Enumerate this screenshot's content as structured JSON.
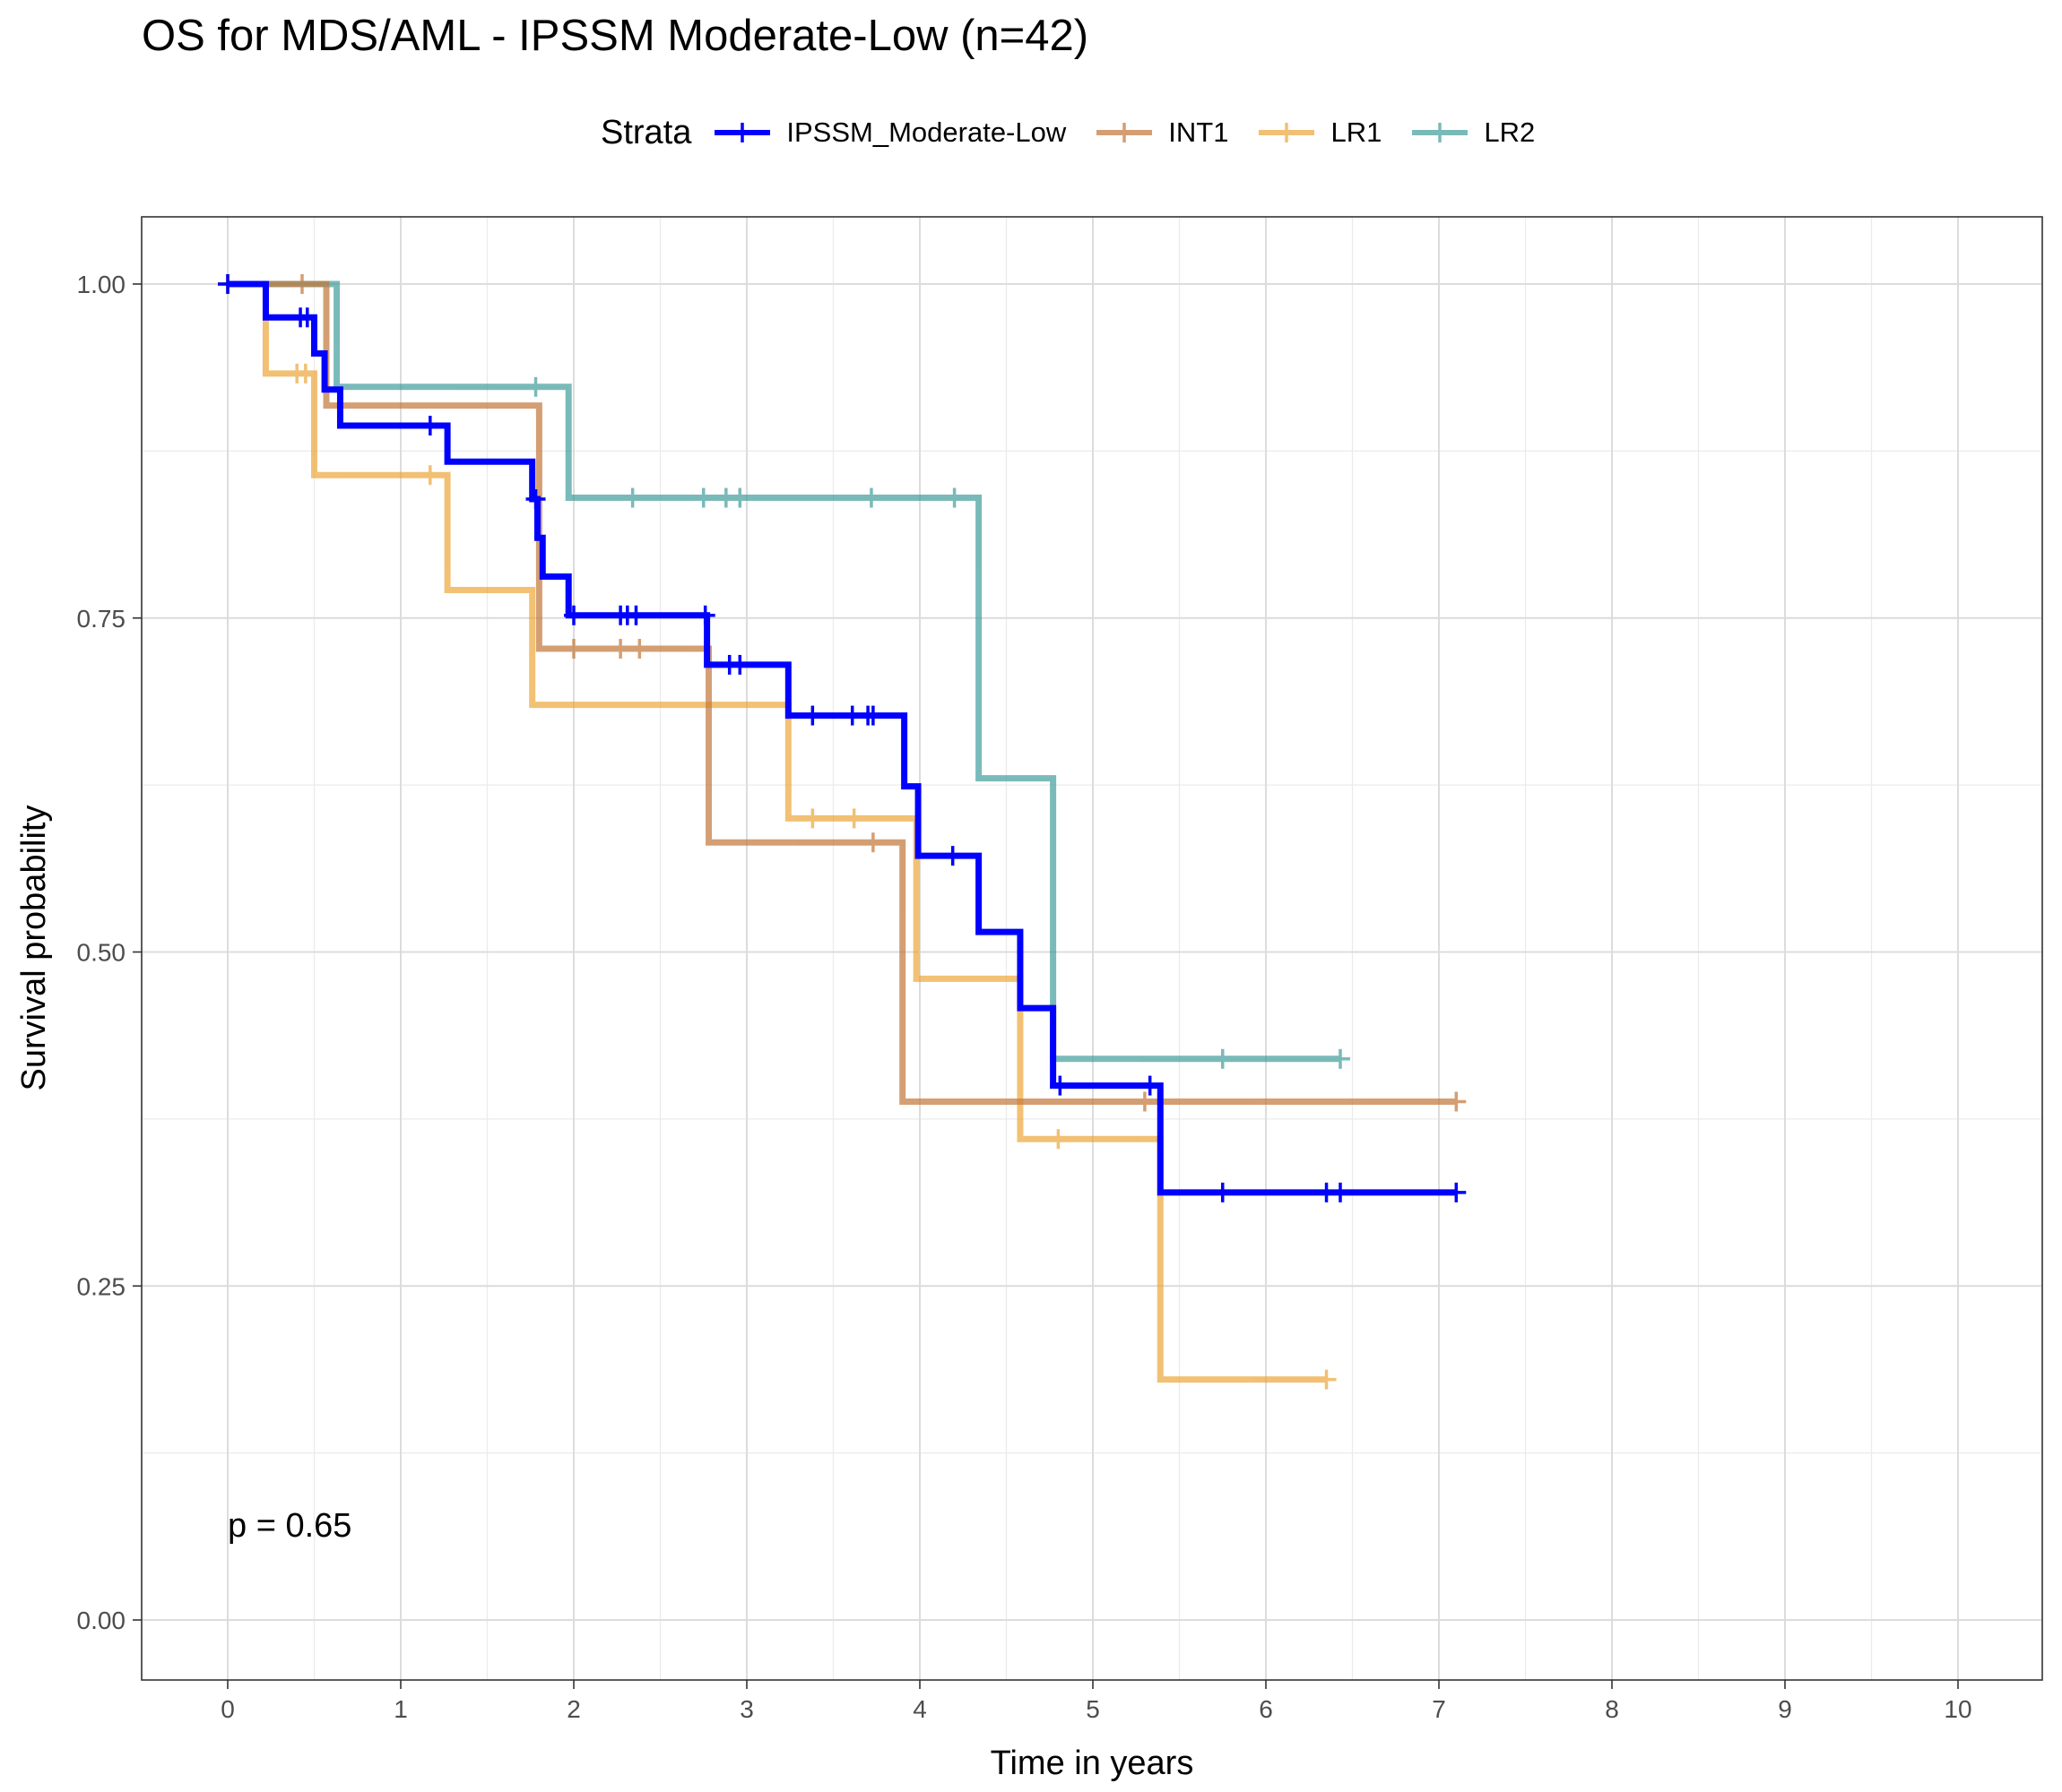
{
  "chart_data": {
    "type": "line",
    "title": "OS for MDS/AML - IPSSM Moderate-Low (n=42)",
    "xlabel": "Time in years",
    "ylabel": "Survival probability",
    "xlim": [
      -0.5,
      10.5
    ],
    "ylim": [
      -0.05,
      1.05
    ],
    "x_ticks": [
      "0",
      "1",
      "2",
      "3",
      "4",
      "5",
      "6",
      "7",
      "8",
      "9",
      "10"
    ],
    "y_ticks": [
      "0.00",
      "0.25",
      "0.50",
      "0.75",
      "1.00"
    ],
    "grid": true,
    "legend_title": "Strata",
    "legend_position": "top",
    "annotation": "p = 0.65",
    "series": [
      {
        "name": "IPSSM_Moderate-Low",
        "color": "#0000ff",
        "opacity": 1.0,
        "steps": [
          [
            0,
            1.0
          ],
          [
            0.22,
            0.975
          ],
          [
            0.5,
            0.948
          ],
          [
            0.56,
            0.921
          ],
          [
            0.65,
            0.894
          ],
          [
            1.27,
            0.867
          ],
          [
            1.76,
            0.839
          ],
          [
            1.79,
            0.81
          ],
          [
            1.82,
            0.781
          ],
          [
            1.97,
            0.752
          ],
          [
            2.77,
            0.715
          ],
          [
            3.24,
            0.677
          ],
          [
            3.91,
            0.624
          ],
          [
            3.99,
            0.572
          ],
          [
            4.34,
            0.515
          ],
          [
            4.58,
            0.458
          ],
          [
            4.77,
            0.4
          ],
          [
            5.39,
            0.32
          ],
          [
            7.1,
            0.32
          ]
        ],
        "censored": [
          [
            0.0,
            1.0
          ],
          [
            0.42,
            0.975
          ],
          [
            0.46,
            0.975
          ],
          [
            1.17,
            0.894
          ],
          [
            1.78,
            0.839
          ],
          [
            2.0,
            0.752
          ],
          [
            2.27,
            0.752
          ],
          [
            2.31,
            0.752
          ],
          [
            2.36,
            0.752
          ],
          [
            2.76,
            0.752
          ],
          [
            2.9,
            0.715
          ],
          [
            2.96,
            0.715
          ],
          [
            3.38,
            0.677
          ],
          [
            3.61,
            0.677
          ],
          [
            3.7,
            0.677
          ],
          [
            3.73,
            0.677
          ],
          [
            4.19,
            0.572
          ],
          [
            4.81,
            0.4
          ],
          [
            5.33,
            0.4
          ],
          [
            5.75,
            0.32
          ],
          [
            6.35,
            0.32
          ],
          [
            6.43,
            0.32
          ],
          [
            7.1,
            0.32
          ]
        ]
      },
      {
        "name": "INT1",
        "color": "#c47a3e",
        "opacity": 0.72,
        "steps": [
          [
            0,
            1.0
          ],
          [
            0.57,
            0.909
          ],
          [
            1.8,
            0.727
          ],
          [
            2.78,
            0.582
          ],
          [
            3.9,
            0.388
          ],
          [
            7.1,
            0.388
          ]
        ],
        "censored": [
          [
            0.0,
            1.0
          ],
          [
            0.43,
            1.0
          ],
          [
            2.0,
            0.727
          ],
          [
            2.27,
            0.727
          ],
          [
            2.38,
            0.727
          ],
          [
            3.73,
            0.582
          ],
          [
            5.3,
            0.388
          ],
          [
            7.1,
            0.388
          ]
        ]
      },
      {
        "name": "LR1",
        "color": "#eb9f2a",
        "opacity": 0.65,
        "steps": [
          [
            0,
            1.0
          ],
          [
            0.22,
            0.933
          ],
          [
            0.5,
            0.857
          ],
          [
            1.27,
            0.771
          ],
          [
            1.76,
            0.685
          ],
          [
            3.24,
            0.6
          ],
          [
            3.98,
            0.48
          ],
          [
            4.58,
            0.36
          ],
          [
            5.39,
            0.18
          ],
          [
            6.35,
            0.18
          ]
        ],
        "censored": [
          [
            0.0,
            1.0
          ],
          [
            0.4,
            0.933
          ],
          [
            0.45,
            0.933
          ],
          [
            1.17,
            0.857
          ],
          [
            3.38,
            0.6
          ],
          [
            3.62,
            0.6
          ],
          [
            4.8,
            0.36
          ],
          [
            6.35,
            0.18
          ]
        ]
      },
      {
        "name": "LR2",
        "color": "#3b9a99",
        "opacity": 0.68,
        "steps": [
          [
            0,
            1.0
          ],
          [
            0.63,
            0.923
          ],
          [
            1.97,
            0.84
          ],
          [
            4.34,
            0.63
          ],
          [
            4.77,
            0.42
          ],
          [
            6.43,
            0.42
          ]
        ],
        "censored": [
          [
            0.0,
            1.0
          ],
          [
            1.78,
            0.923
          ],
          [
            2.34,
            0.84
          ],
          [
            2.75,
            0.84
          ],
          [
            2.88,
            0.84
          ],
          [
            2.96,
            0.84
          ],
          [
            3.72,
            0.84
          ],
          [
            4.2,
            0.84
          ],
          [
            5.75,
            0.42
          ],
          [
            6.43,
            0.42
          ]
        ]
      }
    ]
  }
}
